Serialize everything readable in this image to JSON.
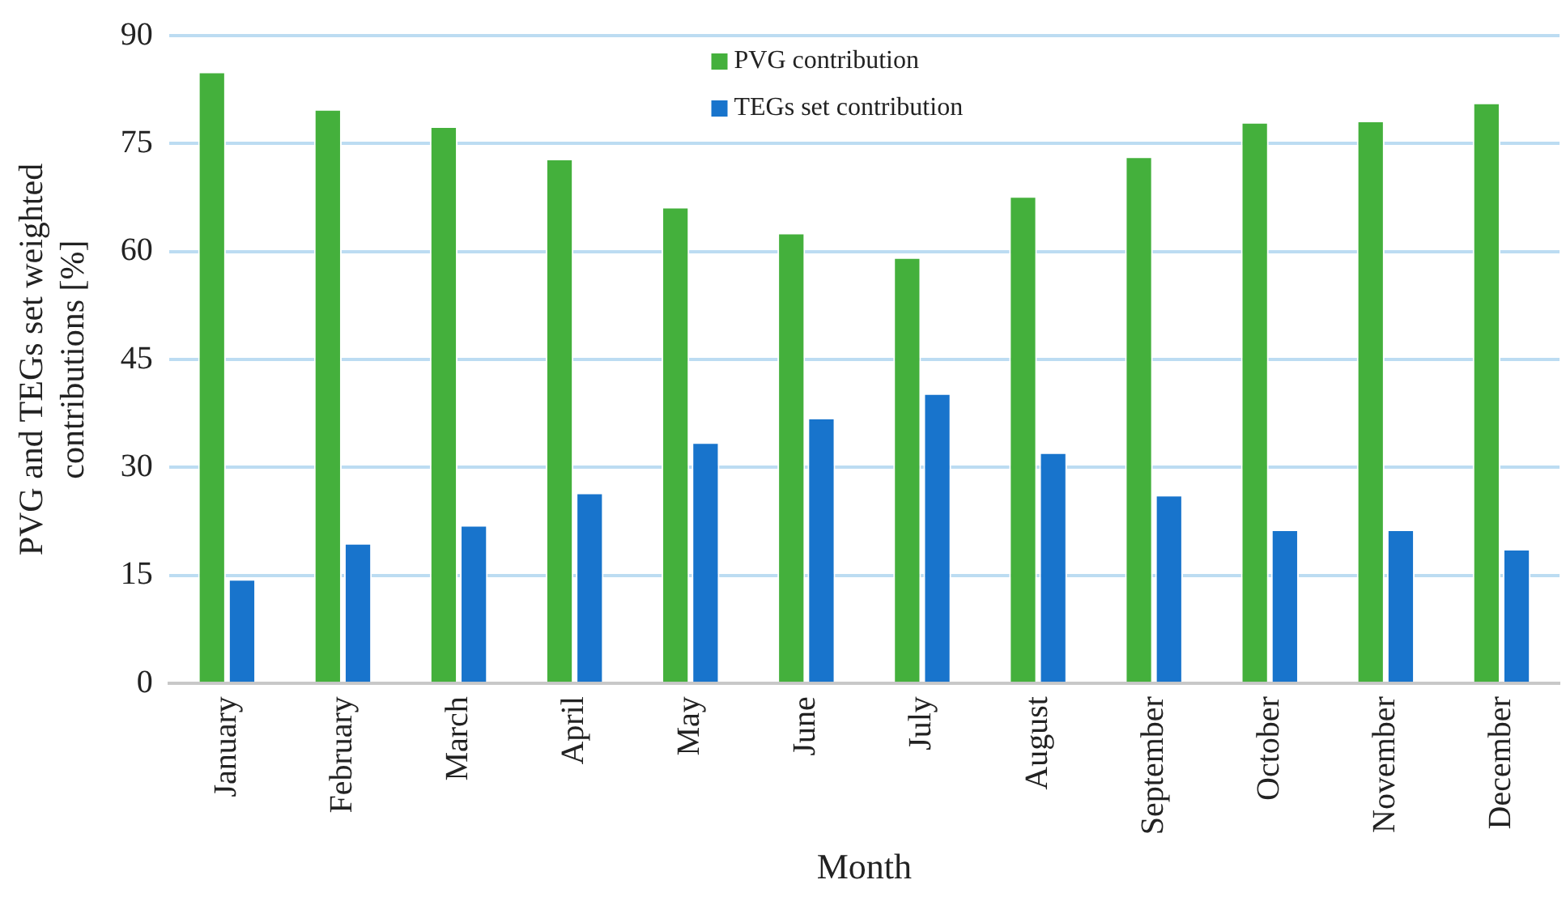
{
  "chart_data": {
    "type": "bar",
    "xlabel": "Month",
    "ylabel": "PVG and TEGs set weighted contributions [%]",
    "categories": [
      "January",
      "February",
      "March",
      "April",
      "May",
      "June",
      "July",
      "August",
      "September",
      "October",
      "November",
      "December"
    ],
    "series": [
      {
        "name": "PVG contribution",
        "color": "#44b03c",
        "values": [
          85.0,
          79.8,
          77.4,
          72.9,
          66.2,
          62.6,
          59.2,
          67.7,
          73.2,
          78.0,
          78.2,
          80.7
        ]
      },
      {
        "name": "TEGs set contribution",
        "color": "#1874cc",
        "values": [
          14.5,
          19.5,
          22.0,
          26.5,
          33.5,
          36.9,
          40.3,
          32.1,
          26.2,
          21.4,
          21.4,
          18.7
        ]
      }
    ],
    "ylim": [
      0,
      90
    ],
    "yticks": [
      0,
      15,
      30,
      45,
      60,
      75,
      90
    ],
    "grid": "y",
    "legend": "top"
  }
}
